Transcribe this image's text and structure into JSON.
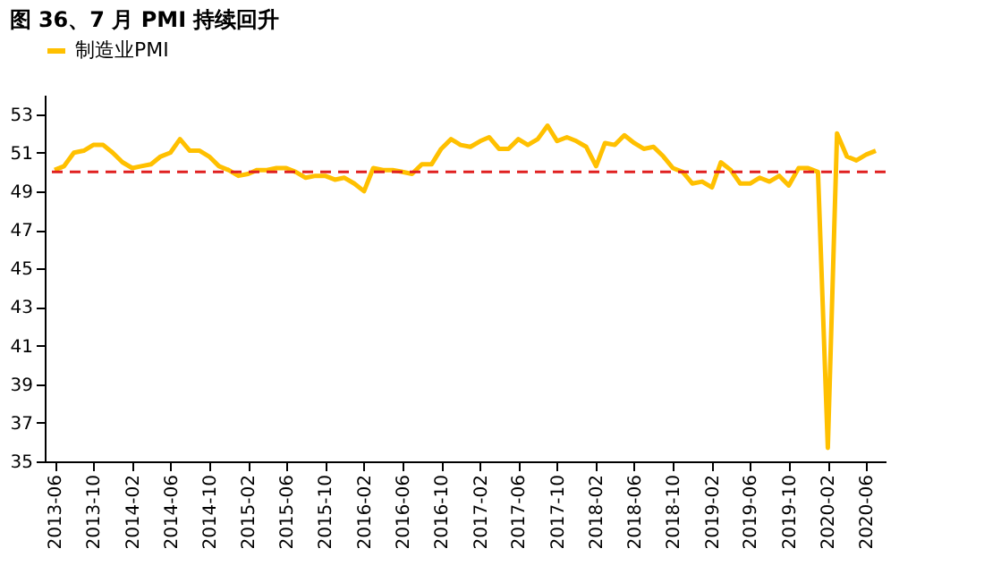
{
  "chart_data": {
    "type": "line",
    "title": "图 36、7 月 PMI 持续回升",
    "x": [
      "2013-06",
      "2013-07",
      "2013-08",
      "2013-09",
      "2013-10",
      "2013-11",
      "2013-12",
      "2014-01",
      "2014-02",
      "2014-03",
      "2014-04",
      "2014-05",
      "2014-06",
      "2014-07",
      "2014-08",
      "2014-09",
      "2014-10",
      "2014-11",
      "2014-12",
      "2015-01",
      "2015-02",
      "2015-03",
      "2015-04",
      "2015-05",
      "2015-06",
      "2015-07",
      "2015-08",
      "2015-09",
      "2015-10",
      "2015-11",
      "2015-12",
      "2016-01",
      "2016-02",
      "2016-03",
      "2016-04",
      "2016-05",
      "2016-06",
      "2016-07",
      "2016-08",
      "2016-09",
      "2016-10",
      "2016-11",
      "2016-12",
      "2017-01",
      "2017-02",
      "2017-03",
      "2017-04",
      "2017-05",
      "2017-06",
      "2017-07",
      "2017-08",
      "2017-09",
      "2017-10",
      "2017-11",
      "2017-12",
      "2018-01",
      "2018-02",
      "2018-03",
      "2018-04",
      "2018-05",
      "2018-06",
      "2018-07",
      "2018-08",
      "2018-09",
      "2018-10",
      "2018-11",
      "2018-12",
      "2019-01",
      "2019-02",
      "2019-03",
      "2019-04",
      "2019-05",
      "2019-06",
      "2019-07",
      "2019-08",
      "2019-09",
      "2019-10",
      "2019-11",
      "2019-12",
      "2020-01",
      "2020-02",
      "2020-03",
      "2020-04",
      "2020-05",
      "2020-06",
      "2020-07"
    ],
    "series": [
      {
        "name": "制造业PMI",
        "color": "#ffc000",
        "values": [
          50.1,
          50.3,
          51.0,
          51.1,
          51.4,
          51.4,
          51.0,
          50.5,
          50.2,
          50.3,
          50.4,
          50.8,
          51.0,
          51.7,
          51.1,
          51.1,
          50.8,
          50.3,
          50.1,
          49.8,
          49.9,
          50.1,
          50.1,
          50.2,
          50.2,
          50.0,
          49.7,
          49.8,
          49.8,
          49.6,
          49.7,
          49.4,
          49.0,
          50.2,
          50.1,
          50.1,
          50.0,
          49.9,
          50.4,
          50.4,
          51.2,
          51.7,
          51.4,
          51.3,
          51.6,
          51.8,
          51.2,
          51.2,
          51.7,
          51.4,
          51.7,
          52.4,
          51.6,
          51.8,
          51.6,
          51.3,
          50.3,
          51.5,
          51.4,
          51.9,
          51.5,
          51.2,
          51.3,
          50.8,
          50.2,
          50.0,
          49.4,
          49.5,
          49.2,
          50.5,
          50.1,
          49.4,
          49.4,
          49.7,
          49.5,
          49.8,
          49.3,
          50.2,
          50.2,
          50.0,
          35.7,
          52.0,
          50.8,
          50.6,
          50.9,
          51.1
        ]
      }
    ],
    "xlim": [
      "2013-05",
      "2020-08"
    ],
    "xticks": [
      "2013-06",
      "2013-10",
      "2014-02",
      "2014-06",
      "2014-10",
      "2015-02",
      "2015-06",
      "2015-10",
      "2016-02",
      "2016-06",
      "2016-10",
      "2017-02",
      "2017-06",
      "2017-10",
      "2018-02",
      "2018-06",
      "2018-10",
      "2019-02",
      "2019-06",
      "2019-10",
      "2020-02",
      "2020-06"
    ],
    "ylim": [
      35,
      54
    ],
    "yticks": [
      35,
      37,
      39,
      41,
      43,
      45,
      47,
      49,
      51,
      53
    ],
    "ref_lines": [
      {
        "axis": "y",
        "value": 50,
        "color": "#e02020",
        "line_style": "dashed"
      }
    ],
    "legend": "top",
    "grid": false,
    "marker": "none",
    "line_style": "solid"
  }
}
